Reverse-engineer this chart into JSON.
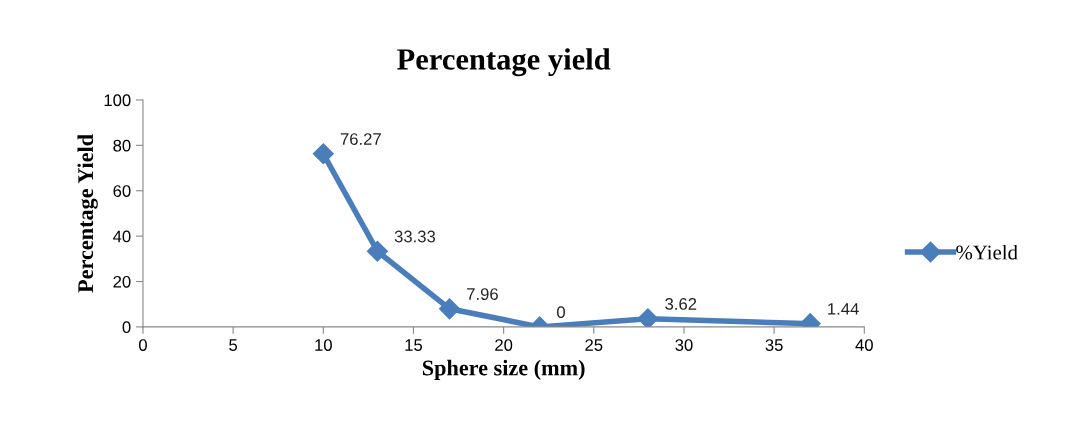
{
  "chart_data": {
    "type": "line",
    "title": "Percentage yield",
    "xlabel": "Sphere size (mm)",
    "ylabel": "Percentage Yield",
    "x": [
      10,
      13,
      17,
      22,
      28,
      37
    ],
    "series": [
      {
        "name": "%Yield",
        "color": "#4a7ebb",
        "values": [
          76.27,
          33.33,
          7.96,
          0,
          3.62,
          1.44
        ]
      }
    ],
    "xlim": [
      0,
      40
    ],
    "xticks": [
      0,
      5,
      10,
      15,
      20,
      25,
      30,
      35,
      40
    ],
    "ylim": [
      0,
      100
    ],
    "yticks": [
      0,
      20,
      40,
      60,
      80,
      100
    ],
    "grid": false,
    "legend": "right",
    "marker": "diamond",
    "line_style": "solid",
    "data_labels": true
  }
}
